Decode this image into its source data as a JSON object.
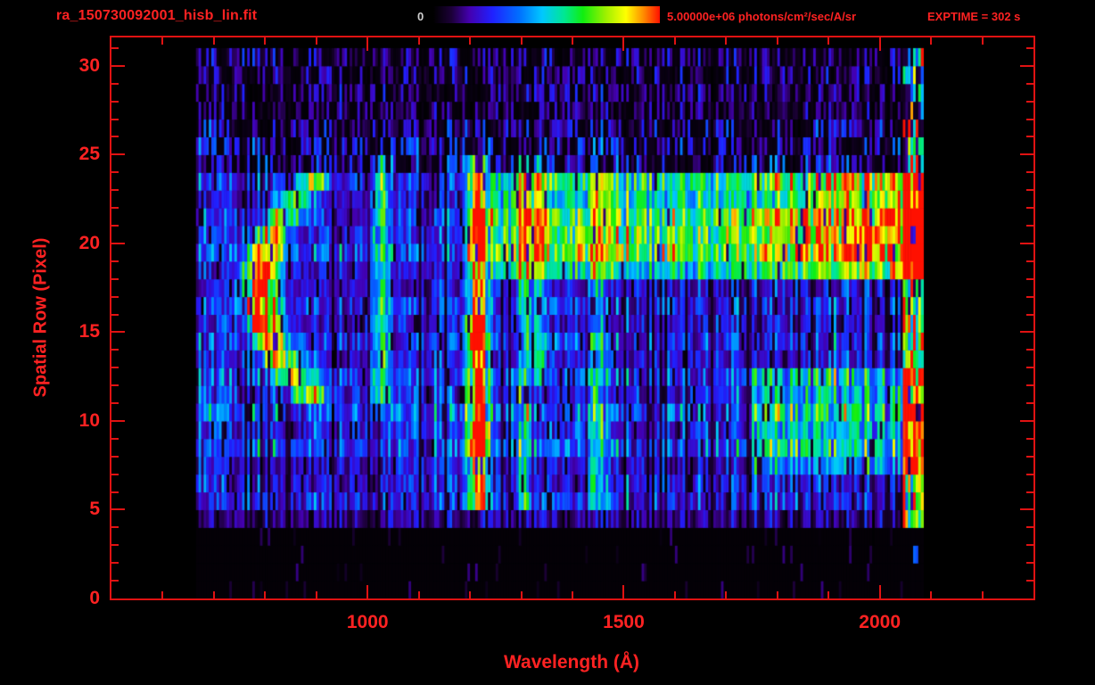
{
  "header": {
    "title": "ra_150730092001_hisb_lin.fit",
    "exptime": "EXPTIME = 302 s"
  },
  "colorbar": {
    "min_label": "0",
    "max_label": "5.00000e+06 photons/cm²/sec/A/sr"
  },
  "colors": {
    "accent": "#ff2222",
    "frame": "#e01212",
    "background": "#000000",
    "min_label_color": "#cfcfcf"
  },
  "chart_data": {
    "type": "heatmap",
    "title": "ra_150730092001_hisb_lin.fit",
    "xlabel": "Wavelength (Å)",
    "ylabel": "Spatial Row (Pixel)",
    "xlim": [
      500,
      2300
    ],
    "ylim": [
      0,
      31.6
    ],
    "x_ticks": [
      1000,
      1500,
      2000
    ],
    "x_minor_step": 100,
    "y_ticks": [
      0,
      5,
      10,
      15,
      20,
      25,
      30
    ],
    "y_minor_step": 1,
    "colorbar_range": [
      0,
      5000000
    ],
    "colorbar_units": "photons/cm²/sec/A/sr",
    "exposure_time_s": 302,
    "rows": 31,
    "bin_width": 5,
    "data_lambda_range": [
      665,
      2085
    ],
    "noise_seed": 20150730,
    "colormap": [
      [
        0.0,
        "#000000"
      ],
      [
        0.08,
        "#1c0038"
      ],
      [
        0.16,
        "#4400b0"
      ],
      [
        0.26,
        "#2020ff"
      ],
      [
        0.38,
        "#0070ff"
      ],
      [
        0.48,
        "#00c8ff"
      ],
      [
        0.58,
        "#00e890"
      ],
      [
        0.66,
        "#10ee10"
      ],
      [
        0.76,
        "#9cf000"
      ],
      [
        0.85,
        "#ffff00"
      ],
      [
        0.93,
        "#ff8800"
      ],
      [
        1.0,
        "#ff1000"
      ]
    ],
    "features": {
      "arc": {
        "row_center": 17,
        "row_peak": 16.5,
        "lambda_vertex": 792,
        "curve": 2.6,
        "row_min": 11,
        "row_max": 23,
        "width": 26,
        "amp": 0.95
      },
      "lines": [
        {
          "lambda": 1216,
          "width": 13,
          "row_min": 5,
          "row_max": 24,
          "amp": 1.0,
          "hot_rows": [
            8,
            9,
            14,
            15,
            19,
            20,
            21
          ]
        },
        {
          "lambda": 1025,
          "width": 11,
          "row_min": 11,
          "row_max": 24,
          "amp": 0.5
        },
        {
          "lambda": 1306,
          "width": 10,
          "row_min": 5,
          "row_max": 24,
          "amp": 0.42
        },
        {
          "lambda": 1335,
          "width": 9,
          "row_min": 12,
          "row_max": 24,
          "amp": 0.35
        },
        {
          "lambda": 1450,
          "width": 14,
          "row_min": 5,
          "row_max": 23,
          "amp": 0.25
        }
      ],
      "band": {
        "row_min": 18,
        "row_max": 23,
        "lambda_min": 1240,
        "ramp_start": 1700,
        "amp": 0.4,
        "amp_max": 0.8,
        "peak_rows": [
          19,
          20,
          21
        ]
      },
      "lower_right": {
        "row_min": 7,
        "row_max": 12,
        "lambda_min": 1750,
        "amp": 0.3
      },
      "right_edge": {
        "lambda_min": 2045,
        "lambda_max": 2085,
        "amp": 0.75
      }
    }
  }
}
